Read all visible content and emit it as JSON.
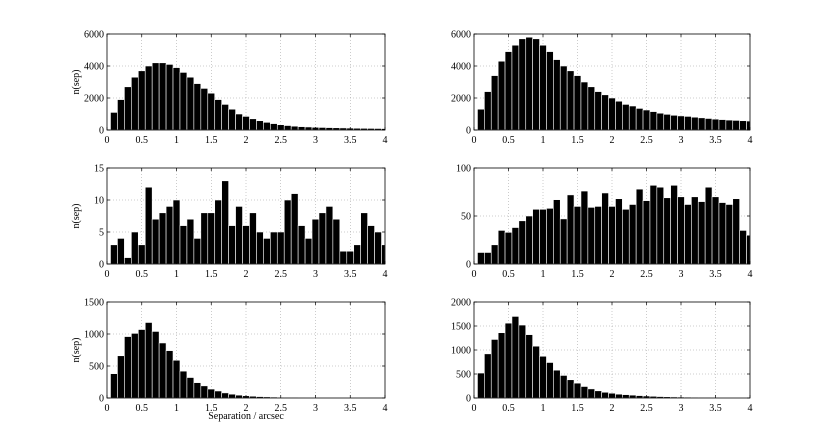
{
  "figure": {
    "xlabel": "Separation / arcsec"
  },
  "chart_data": [
    {
      "type": "bar",
      "ylabel": "n(sep)",
      "xlabel": "",
      "xlim": [
        0,
        4
      ],
      "ylim": [
        0,
        6000
      ],
      "xticks": [
        "0",
        "0.5",
        "1",
        "1.5",
        "2",
        "2.5",
        "3",
        "3.5",
        "4"
      ],
      "yticks": [
        "0",
        "2000",
        "4000",
        "6000"
      ],
      "grid": true,
      "bin_width": 0.1,
      "bin_starts": [
        0.05,
        0.15,
        0.25,
        0.35,
        0.45,
        0.55,
        0.65,
        0.75,
        0.85,
        0.95,
        1.05,
        1.15,
        1.25,
        1.35,
        1.45,
        1.55,
        1.65,
        1.75,
        1.85,
        1.95,
        2.05,
        2.15,
        2.25,
        2.35,
        2.45,
        2.55,
        2.65,
        2.75,
        2.85,
        2.95,
        3.05,
        3.15,
        3.25,
        3.35,
        3.45,
        3.55,
        3.65,
        3.75,
        3.85,
        3.95
      ],
      "values": [
        1100,
        1900,
        2700,
        3300,
        3700,
        4000,
        4200,
        4200,
        4100,
        3900,
        3600,
        3300,
        2900,
        2600,
        2300,
        1900,
        1600,
        1300,
        1000,
        850,
        700,
        580,
        480,
        400,
        330,
        280,
        240,
        210,
        190,
        170,
        160,
        150,
        140,
        130,
        120,
        110,
        105,
        100,
        95,
        90
      ]
    },
    {
      "type": "bar",
      "ylabel": "",
      "xlabel": "",
      "xlim": [
        0,
        4
      ],
      "ylim": [
        0,
        6000
      ],
      "xticks": [
        "0",
        "0.5",
        "1",
        "1.5",
        "2",
        "2.5",
        "3",
        "3.5",
        "4"
      ],
      "yticks": [
        "0",
        "2000",
        "4000",
        "6000"
      ],
      "grid": true,
      "bin_width": 0.1,
      "bin_starts": [
        0.05,
        0.15,
        0.25,
        0.35,
        0.45,
        0.55,
        0.65,
        0.75,
        0.85,
        0.95,
        1.05,
        1.15,
        1.25,
        1.35,
        1.45,
        1.55,
        1.65,
        1.75,
        1.85,
        1.95,
        2.05,
        2.15,
        2.25,
        2.35,
        2.45,
        2.55,
        2.65,
        2.75,
        2.85,
        2.95,
        3.05,
        3.15,
        3.25,
        3.35,
        3.45,
        3.55,
        3.65,
        3.75,
        3.85,
        3.95
      ],
      "values": [
        1300,
        2400,
        3400,
        4300,
        4900,
        5300,
        5700,
        5800,
        5700,
        5300,
        4900,
        4400,
        4000,
        3700,
        3400,
        3000,
        2700,
        2400,
        2200,
        2000,
        1800,
        1600,
        1500,
        1350,
        1250,
        1150,
        1050,
        980,
        920,
        880,
        850,
        800,
        760,
        720,
        680,
        650,
        620,
        600,
        580,
        560
      ]
    },
    {
      "type": "bar",
      "ylabel": "n(sep)",
      "xlabel": "",
      "xlim": [
        0,
        4
      ],
      "ylim": [
        0,
        15
      ],
      "xticks": [
        "0",
        "0.5",
        "1",
        "1.5",
        "2",
        "2.5",
        "3",
        "3.5",
        "4"
      ],
      "yticks": [
        "0",
        "5",
        "10",
        "15"
      ],
      "grid": true,
      "bin_width": 0.1,
      "bin_starts": [
        0.05,
        0.15,
        0.25,
        0.35,
        0.45,
        0.55,
        0.65,
        0.75,
        0.85,
        0.95,
        1.05,
        1.15,
        1.25,
        1.35,
        1.45,
        1.55,
        1.65,
        1.75,
        1.85,
        1.95,
        2.05,
        2.15,
        2.25,
        2.35,
        2.45,
        2.55,
        2.65,
        2.75,
        2.85,
        2.95,
        3.05,
        3.15,
        3.25,
        3.35,
        3.45,
        3.55,
        3.65,
        3.75,
        3.85,
        3.95
      ],
      "values": [
        3,
        4,
        1,
        5,
        3,
        12,
        7,
        8,
        9,
        10,
        6,
        7,
        4,
        8,
        8,
        10,
        13,
        6,
        9,
        6,
        8,
        5,
        4,
        5,
        5,
        10,
        11,
        6,
        4,
        7,
        8,
        9,
        7,
        2,
        2,
        3,
        8,
        6,
        5,
        3
      ]
    },
    {
      "type": "bar",
      "ylabel": "",
      "xlabel": "",
      "xlim": [
        0,
        4
      ],
      "ylim": [
        0,
        100
      ],
      "xticks": [
        "0",
        "0.5",
        "1",
        "1.5",
        "2",
        "2.5",
        "3",
        "3.5",
        "4"
      ],
      "yticks": [
        "0",
        "50",
        "100"
      ],
      "grid": true,
      "bin_width": 0.1,
      "bin_starts": [
        0.05,
        0.15,
        0.25,
        0.35,
        0.45,
        0.55,
        0.65,
        0.75,
        0.85,
        0.95,
        1.05,
        1.15,
        1.25,
        1.35,
        1.45,
        1.55,
        1.65,
        1.75,
        1.85,
        1.95,
        2.05,
        2.15,
        2.25,
        2.35,
        2.45,
        2.55,
        2.65,
        2.75,
        2.85,
        2.95,
        3.05,
        3.15,
        3.25,
        3.35,
        3.45,
        3.55,
        3.65,
        3.75,
        3.85,
        3.95
      ],
      "values": [
        12,
        12,
        20,
        35,
        33,
        38,
        45,
        50,
        57,
        57,
        58,
        67,
        47,
        72,
        60,
        76,
        59,
        60,
        74,
        60,
        68,
        57,
        62,
        78,
        66,
        82,
        80,
        69,
        82,
        70,
        62,
        70,
        65,
        80,
        70,
        64,
        62,
        68,
        35,
        30
      ]
    },
    {
      "type": "bar",
      "ylabel": "n(sep)",
      "xlabel": "",
      "xlim": [
        0,
        4
      ],
      "ylim": [
        0,
        1500
      ],
      "xticks": [
        "0",
        "0.5",
        "1",
        "1.5",
        "2",
        "2.5",
        "3",
        "3.5",
        "4"
      ],
      "yticks": [
        "0",
        "500",
        "1000",
        "1500"
      ],
      "grid": true,
      "bin_width": 0.1,
      "bin_starts": [
        0.05,
        0.15,
        0.25,
        0.35,
        0.45,
        0.55,
        0.65,
        0.75,
        0.85,
        0.95,
        1.05,
        1.15,
        1.25,
        1.35,
        1.45,
        1.55,
        1.65,
        1.75,
        1.85,
        1.95,
        2.05,
        2.15,
        2.25,
        2.35,
        2.45,
        2.55,
        2.65,
        2.75,
        2.85,
        2.95,
        3.05,
        3.15,
        3.25,
        3.35,
        3.45,
        3.55,
        3.65,
        3.75,
        3.85,
        3.95
      ],
      "values": [
        380,
        660,
        960,
        1010,
        1070,
        1180,
        1040,
        860,
        740,
        590,
        420,
        320,
        240,
        190,
        140,
        110,
        80,
        60,
        45,
        35,
        28,
        22,
        18,
        15,
        12,
        10,
        9,
        8,
        7,
        6,
        5,
        5,
        4,
        4,
        3,
        3,
        3,
        2,
        2,
        2
      ]
    },
    {
      "type": "bar",
      "ylabel": "",
      "xlabel": "",
      "xlim": [
        0,
        4
      ],
      "ylim": [
        0,
        2000
      ],
      "xticks": [
        "0",
        "0.5",
        "1",
        "1.5",
        "2",
        "2.5",
        "3",
        "3.5",
        "4"
      ],
      "yticks": [
        "0",
        "500",
        "1000",
        "1500",
        "2000"
      ],
      "grid": true,
      "bin_width": 0.1,
      "bin_starts": [
        0.05,
        0.15,
        0.25,
        0.35,
        0.45,
        0.55,
        0.65,
        0.75,
        0.85,
        0.95,
        1.05,
        1.15,
        1.25,
        1.35,
        1.45,
        1.55,
        1.65,
        1.75,
        1.85,
        1.95,
        2.05,
        2.15,
        2.25,
        2.35,
        2.45,
        2.55,
        2.65,
        2.75,
        2.85,
        2.95,
        3.05,
        3.15,
        3.25,
        3.35,
        3.45,
        3.55,
        3.65,
        3.75,
        3.85,
        3.95
      ],
      "values": [
        520,
        920,
        1220,
        1360,
        1560,
        1700,
        1520,
        1320,
        1080,
        870,
        740,
        580,
        470,
        380,
        310,
        240,
        190,
        150,
        120,
        100,
        80,
        70,
        60,
        50,
        42,
        36,
        30,
        26,
        22,
        20,
        18,
        16,
        14,
        12,
        11,
        10,
        9,
        8,
        7,
        6
      ]
    }
  ]
}
